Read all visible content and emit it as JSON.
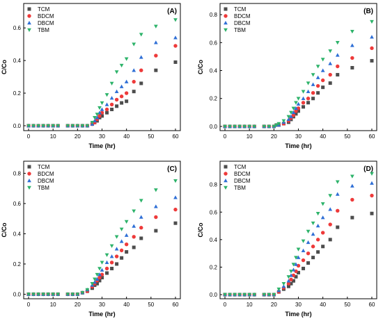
{
  "figure": {
    "panels": [
      {
        "label": "(A)"
      },
      {
        "label": "(B)"
      },
      {
        "label": "(C)"
      },
      {
        "label": "(D)"
      }
    ]
  },
  "colors": {
    "TCM": "#4d4d4d",
    "BDCM": "#ee3a3a",
    "DBCM": "#2f6fd6",
    "TBM": "#2db36a"
  },
  "chart_data": [
    {
      "type": "scatter",
      "panel": "(A)",
      "xlabel": "Time (hr)",
      "ylabel": "C/Co",
      "xlim": [
        -2,
        62
      ],
      "ylim": [
        -0.03,
        0.75
      ],
      "xticks": [
        0,
        10,
        20,
        30,
        40,
        50,
        60
      ],
      "yticks": [
        0.0,
        0.2,
        0.4,
        0.6
      ],
      "legend_position": "top-left",
      "grid": false,
      "series": [
        {
          "name": "TCM",
          "marker": "square",
          "x": [
            0,
            2,
            4,
            6,
            8,
            10,
            12,
            16,
            18,
            20,
            22,
            24,
            26,
            27,
            28,
            29,
            30,
            32,
            34,
            36,
            38,
            40,
            43,
            46,
            52,
            60
          ],
          "y": [
            0,
            0,
            0,
            0,
            0,
            0,
            0,
            0,
            0,
            0,
            0,
            0,
            0.01,
            0.02,
            0.03,
            0.05,
            0.06,
            0.08,
            0.1,
            0.12,
            0.14,
            0.15,
            0.21,
            0.26,
            0.34,
            0.39
          ]
        },
        {
          "name": "BDCM",
          "marker": "circle",
          "x": [
            0,
            2,
            4,
            6,
            8,
            10,
            12,
            16,
            18,
            20,
            22,
            24,
            26,
            27,
            28,
            29,
            30,
            32,
            34,
            36,
            38,
            40,
            43,
            46,
            52,
            60
          ],
          "y": [
            0,
            0,
            0,
            0,
            0,
            0,
            0,
            0,
            0,
            0,
            0,
            0,
            0.01,
            0.02,
            0.04,
            0.06,
            0.08,
            0.1,
            0.13,
            0.16,
            0.18,
            0.2,
            0.27,
            0.34,
            0.43,
            0.49
          ]
        },
        {
          "name": "DBCM",
          "marker": "triangle-up",
          "x": [
            0,
            2,
            4,
            6,
            8,
            10,
            12,
            16,
            18,
            20,
            22,
            24,
            26,
            27,
            28,
            29,
            30,
            32,
            34,
            36,
            38,
            40,
            43,
            46,
            52,
            60
          ],
          "y": [
            0,
            0,
            0,
            0,
            0,
            0,
            0,
            0,
            0,
            0,
            0,
            0,
            0.01,
            0.03,
            0.05,
            0.08,
            0.1,
            0.13,
            0.17,
            0.21,
            0.24,
            0.27,
            0.34,
            0.42,
            0.51,
            0.54
          ]
        },
        {
          "name": "TBM",
          "marker": "triangle-down",
          "x": [
            0,
            2,
            4,
            6,
            8,
            10,
            12,
            16,
            18,
            20,
            22,
            24,
            26,
            27,
            28,
            29,
            30,
            32,
            34,
            36,
            38,
            40,
            43,
            46,
            52,
            60
          ],
          "y": [
            0,
            0,
            0,
            0,
            0,
            0,
            0,
            0,
            0,
            0,
            0,
            0,
            0.02,
            0.05,
            0.07,
            0.11,
            0.14,
            0.19,
            0.26,
            0.33,
            0.37,
            0.41,
            0.5,
            0.56,
            0.61,
            0.65
          ]
        }
      ]
    },
    {
      "type": "scatter",
      "panel": "(B)",
      "xlabel": "Time (hr)",
      "ylabel": "C/Co",
      "xlim": [
        -2,
        62
      ],
      "ylim": [
        -0.03,
        0.88
      ],
      "xticks": [
        0,
        10,
        20,
        30,
        40,
        50,
        60
      ],
      "yticks": [
        0.0,
        0.2,
        0.4,
        0.6,
        0.8
      ],
      "legend_position": "top-left",
      "grid": false,
      "series": [
        {
          "name": "TCM",
          "marker": "square",
          "x": [
            0,
            2,
            4,
            6,
            8,
            10,
            12,
            16,
            18,
            20,
            21,
            22,
            24,
            26,
            27,
            28,
            29,
            30,
            32,
            34,
            36,
            38,
            40,
            43,
            46,
            52,
            60
          ],
          "y": [
            0,
            0,
            0,
            0,
            0,
            0,
            0,
            0,
            0,
            0,
            0.01,
            0.01,
            0.02,
            0.03,
            0.05,
            0.07,
            0.09,
            0.11,
            0.14,
            0.17,
            0.2,
            0.24,
            0.28,
            0.31,
            0.37,
            0.42,
            0.47
          ]
        },
        {
          "name": "BDCM",
          "marker": "circle",
          "x": [
            0,
            2,
            4,
            6,
            8,
            10,
            12,
            16,
            18,
            20,
            21,
            22,
            24,
            26,
            27,
            28,
            29,
            30,
            32,
            34,
            36,
            38,
            40,
            43,
            46,
            52,
            60
          ],
          "y": [
            0,
            0,
            0,
            0,
            0,
            0,
            0,
            0,
            0,
            0,
            0.01,
            0.01,
            0.02,
            0.04,
            0.06,
            0.08,
            0.11,
            0.13,
            0.17,
            0.2,
            0.24,
            0.29,
            0.33,
            0.37,
            0.43,
            0.49,
            0.56
          ]
        },
        {
          "name": "DBCM",
          "marker": "triangle-up",
          "x": [
            0,
            2,
            4,
            6,
            8,
            10,
            12,
            16,
            18,
            20,
            21,
            22,
            24,
            26,
            27,
            28,
            29,
            30,
            32,
            34,
            36,
            38,
            40,
            43,
            46,
            52,
            60
          ],
          "y": [
            0,
            0,
            0,
            0,
            0,
            0,
            0,
            0,
            0,
            0,
            0.01,
            0.01,
            0.03,
            0.05,
            0.07,
            0.1,
            0.13,
            0.16,
            0.2,
            0.25,
            0.3,
            0.35,
            0.4,
            0.45,
            0.51,
            0.58,
            0.64
          ]
        },
        {
          "name": "TBM",
          "marker": "triangle-down",
          "x": [
            0,
            2,
            4,
            6,
            8,
            10,
            12,
            16,
            18,
            20,
            21,
            22,
            24,
            26,
            27,
            28,
            29,
            30,
            32,
            34,
            36,
            38,
            40,
            43,
            46,
            52,
            60
          ],
          "y": [
            0,
            0,
            0,
            0,
            0,
            0,
            0,
            0,
            0,
            0,
            0.01,
            0.02,
            0.04,
            0.07,
            0.1,
            0.13,
            0.17,
            0.2,
            0.25,
            0.31,
            0.37,
            0.43,
            0.48,
            0.54,
            0.6,
            0.68,
            0.75
          ]
        }
      ]
    },
    {
      "type": "scatter",
      "panel": "(C)",
      "xlabel": "Time (hr)",
      "ylabel": "C/Co",
      "xlim": [
        -2,
        62
      ],
      "ylim": [
        -0.03,
        0.88
      ],
      "xticks": [
        0,
        10,
        20,
        30,
        40,
        50,
        60
      ],
      "yticks": [
        0.0,
        0.2,
        0.4,
        0.6,
        0.8
      ],
      "legend_position": "top-left",
      "grid": false,
      "series": [
        {
          "name": "TCM",
          "marker": "square",
          "x": [
            0,
            2,
            4,
            6,
            8,
            10,
            12,
            16,
            18,
            20,
            22,
            24,
            26,
            27,
            28,
            29,
            30,
            32,
            34,
            36,
            38,
            40,
            43,
            46,
            52,
            60
          ],
          "y": [
            0,
            0,
            0,
            0,
            0,
            0,
            0,
            0,
            0,
            0,
            0.01,
            0.02,
            0.04,
            0.06,
            0.07,
            0.09,
            0.11,
            0.14,
            0.17,
            0.2,
            0.24,
            0.28,
            0.31,
            0.37,
            0.42,
            0.47
          ]
        },
        {
          "name": "BDCM",
          "marker": "circle",
          "x": [
            0,
            2,
            4,
            6,
            8,
            10,
            12,
            16,
            18,
            20,
            22,
            24,
            26,
            27,
            28,
            29,
            30,
            32,
            34,
            36,
            38,
            40,
            43,
            46,
            52,
            60
          ],
          "y": [
            0,
            0,
            0,
            0,
            0,
            0,
            0,
            0,
            0,
            0,
            0.01,
            0.02,
            0.05,
            0.07,
            0.09,
            0.11,
            0.13,
            0.17,
            0.21,
            0.25,
            0.29,
            0.33,
            0.38,
            0.44,
            0.51,
            0.56
          ]
        },
        {
          "name": "DBCM",
          "marker": "triangle-up",
          "x": [
            0,
            2,
            4,
            6,
            8,
            10,
            12,
            16,
            18,
            20,
            22,
            24,
            26,
            27,
            28,
            29,
            30,
            32,
            34,
            36,
            38,
            40,
            43,
            46,
            52,
            60
          ],
          "y": [
            0,
            0,
            0,
            0,
            0,
            0,
            0,
            0,
            0,
            0,
            0.01,
            0.03,
            0.06,
            0.08,
            0.1,
            0.13,
            0.16,
            0.21,
            0.25,
            0.3,
            0.35,
            0.39,
            0.45,
            0.51,
            0.58,
            0.64
          ]
        },
        {
          "name": "TBM",
          "marker": "triangle-down",
          "x": [
            0,
            2,
            4,
            6,
            8,
            10,
            12,
            16,
            18,
            20,
            22,
            24,
            26,
            27,
            28,
            29,
            30,
            32,
            34,
            36,
            38,
            40,
            43,
            46,
            52,
            60
          ],
          "y": [
            0,
            0,
            0,
            0,
            0,
            0,
            0,
            0,
            0,
            0,
            0.01,
            0.03,
            0.07,
            0.1,
            0.13,
            0.17,
            0.21,
            0.26,
            0.32,
            0.38,
            0.43,
            0.48,
            0.55,
            0.62,
            0.69,
            0.75
          ]
        }
      ]
    },
    {
      "type": "scatter",
      "panel": "(D)",
      "xlabel": "Time (hr)",
      "ylabel": "C/Co",
      "xlim": [
        -2,
        62
      ],
      "ylim": [
        -0.03,
        0.97
      ],
      "xticks": [
        0,
        10,
        20,
        30,
        40,
        50,
        60
      ],
      "yticks": [
        0.0,
        0.2,
        0.4,
        0.6,
        0.8
      ],
      "legend_position": "top-left",
      "grid": false,
      "series": [
        {
          "name": "TCM",
          "marker": "square",
          "x": [
            0,
            2,
            4,
            6,
            8,
            10,
            12,
            16,
            18,
            20,
            22,
            24,
            26,
            27,
            28,
            29,
            30,
            32,
            34,
            36,
            38,
            40,
            43,
            46,
            52,
            60
          ],
          "y": [
            0,
            0,
            0,
            0,
            0,
            0,
            0,
            0,
            0,
            0,
            0.02,
            0.04,
            0.06,
            0.08,
            0.1,
            0.13,
            0.16,
            0.19,
            0.23,
            0.27,
            0.31,
            0.35,
            0.4,
            0.49,
            0.56,
            0.59
          ]
        },
        {
          "name": "BDCM",
          "marker": "circle",
          "x": [
            0,
            2,
            4,
            6,
            8,
            10,
            12,
            16,
            18,
            20,
            22,
            24,
            26,
            27,
            28,
            29,
            30,
            32,
            34,
            36,
            38,
            40,
            43,
            46,
            52,
            60
          ],
          "y": [
            0,
            0,
            0,
            0,
            0,
            0,
            0,
            0,
            0,
            0,
            0.02,
            0.05,
            0.08,
            0.11,
            0.14,
            0.17,
            0.21,
            0.25,
            0.3,
            0.35,
            0.4,
            0.45,
            0.51,
            0.61,
            0.69,
            0.72
          ]
        },
        {
          "name": "DBCM",
          "marker": "triangle-up",
          "x": [
            0,
            2,
            4,
            6,
            8,
            10,
            12,
            16,
            18,
            20,
            22,
            24,
            26,
            27,
            28,
            29,
            30,
            32,
            34,
            36,
            38,
            40,
            43,
            46,
            52,
            60
          ],
          "y": [
            0,
            0,
            0,
            0,
            0,
            0,
            0,
            0,
            0,
            0,
            0.03,
            0.06,
            0.1,
            0.14,
            0.18,
            0.22,
            0.27,
            0.32,
            0.38,
            0.44,
            0.5,
            0.56,
            0.62,
            0.73,
            0.79,
            0.81
          ]
        },
        {
          "name": "TBM",
          "marker": "triangle-down",
          "x": [
            0,
            2,
            4,
            6,
            8,
            10,
            12,
            16,
            18,
            20,
            22,
            24,
            26,
            27,
            28,
            29,
            30,
            32,
            34,
            36,
            38,
            40,
            43,
            46,
            52,
            60
          ],
          "y": [
            0,
            0,
            0,
            0,
            0,
            0,
            0,
            0,
            0,
            0,
            0.04,
            0.08,
            0.13,
            0.17,
            0.22,
            0.27,
            0.33,
            0.39,
            0.46,
            0.52,
            0.59,
            0.66,
            0.72,
            0.82,
            0.86,
            0.88
          ]
        }
      ]
    }
  ]
}
